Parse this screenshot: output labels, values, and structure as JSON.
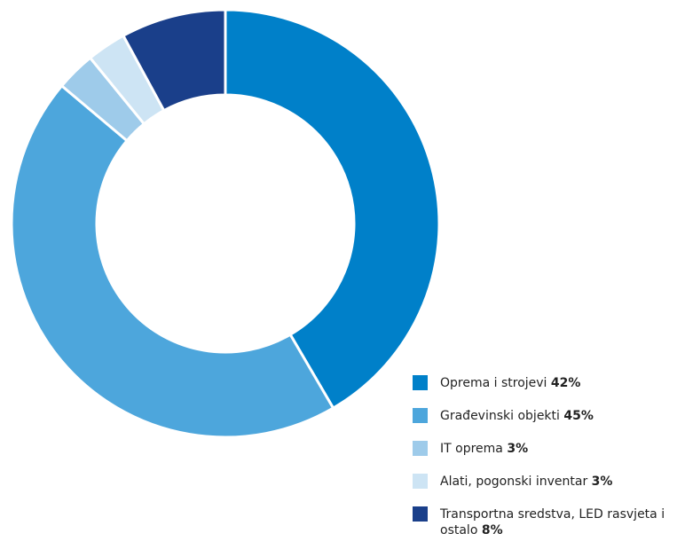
{
  "chart_data": {
    "type": "donut",
    "categories": [
      "Oprema i strojevi",
      "Građevinski objekti",
      "IT oprema",
      "Alati, pogonski inventar",
      "Transportna sredstva, LED rasvjeta i ostalo"
    ],
    "values": [
      42,
      45,
      3,
      3,
      8
    ],
    "value_labels": [
      "42%",
      "45%",
      "3%",
      "3%",
      "8%"
    ],
    "colors": [
      "#0080c9",
      "#4da6dc",
      "#9ecbea",
      "#cde4f4",
      "#1a3f8a"
    ]
  }
}
